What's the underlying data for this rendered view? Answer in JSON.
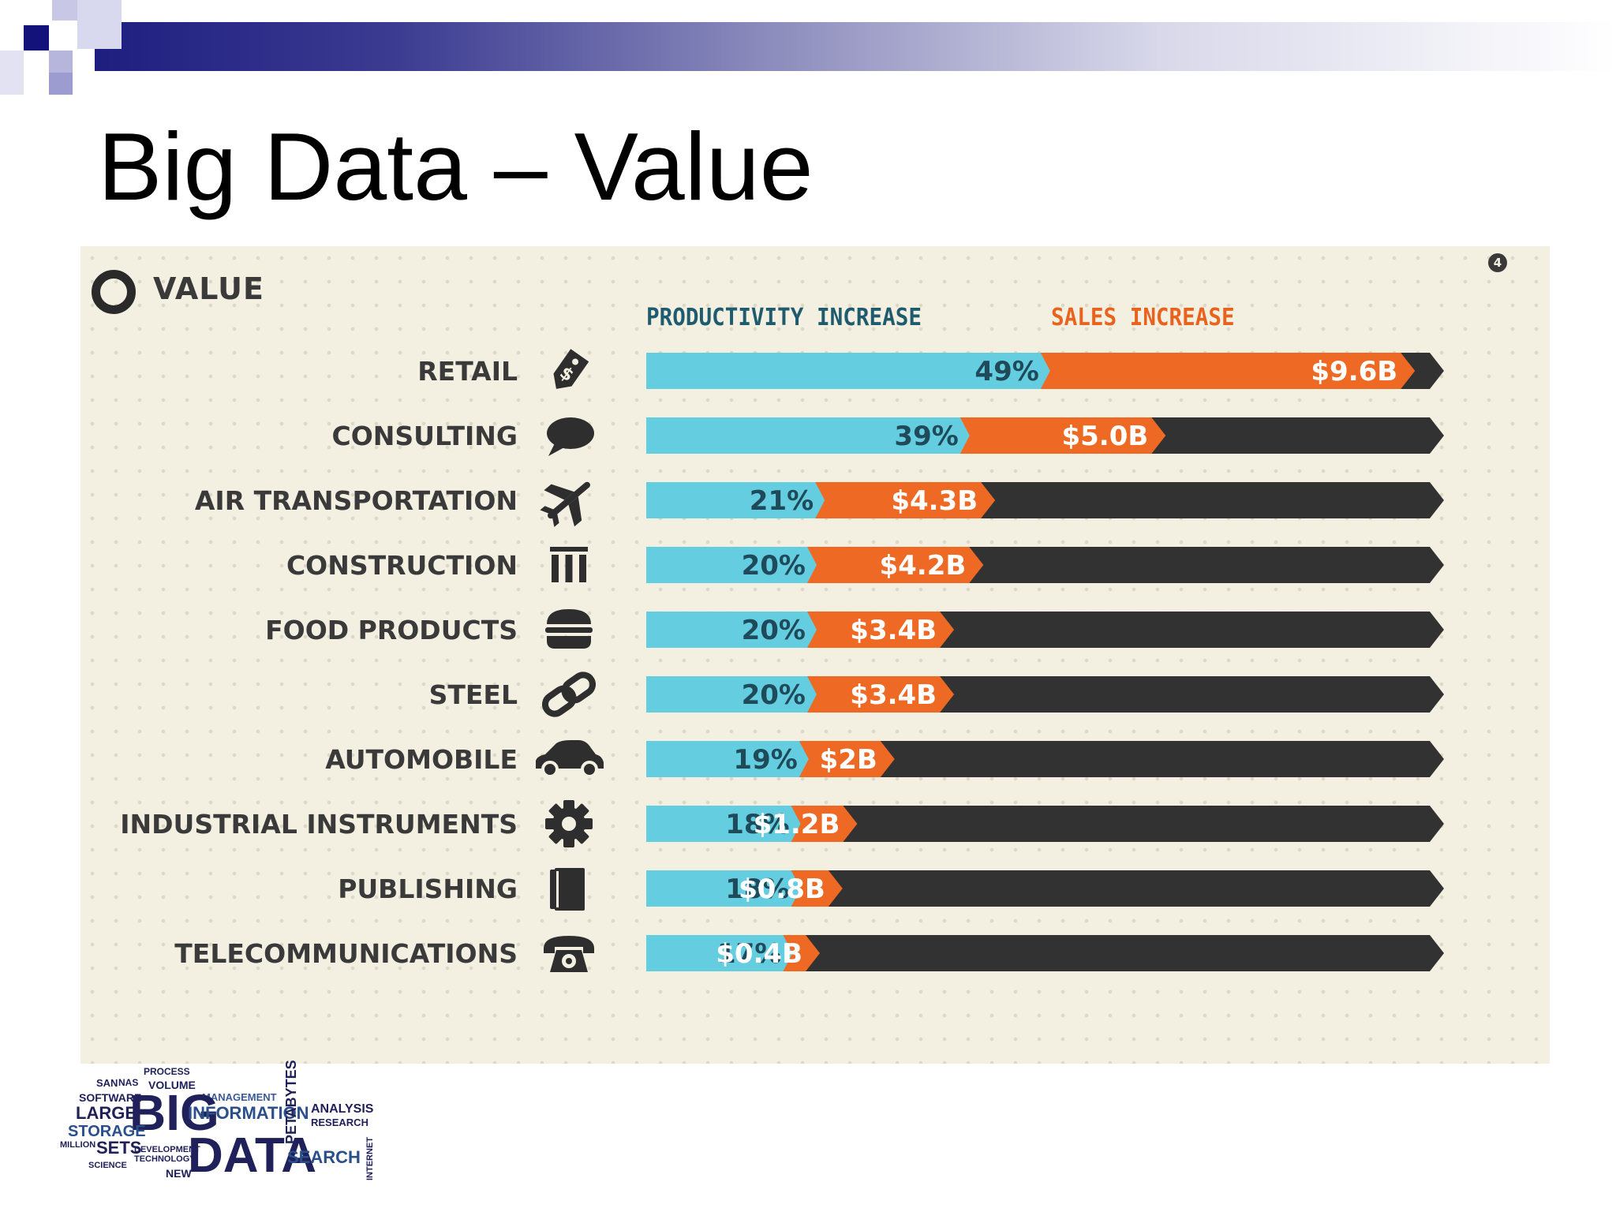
{
  "slide": {
    "title": "Big Data – Value"
  },
  "panel": {
    "heading": "VALUE",
    "page_badge": "4"
  },
  "colors": {
    "productivity": "#65cde0",
    "sales": "#ee6a24",
    "track": "#333232",
    "title_band": "#1e1e80"
  },
  "chart_data": {
    "type": "bar",
    "stacked": true,
    "legend": [
      "PRODUCTIVITY INCREASE",
      "SALES INCREASE"
    ],
    "categories": [
      "RETAIL",
      "CONSULTING",
      "AIR TRANSPORTATION",
      "CONSTRUCTION",
      "FOOD PRODUCTS",
      "STEEL",
      "AUTOMOBILE",
      "INDUSTRIAL INSTRUMENTS",
      "PUBLISHING",
      "TELECOMMUNICATIONS"
    ],
    "icons": [
      "price-tag-icon",
      "speech-bubble-icon",
      "airplane-icon",
      "columns-icon",
      "burger-icon",
      "chain-link-icon",
      "car-icon",
      "gear-icon",
      "book-icon",
      "telephone-icon"
    ],
    "series": [
      {
        "name": "PRODUCTIVITY INCREASE",
        "values": [
          49,
          39,
          21,
          20,
          20,
          20,
          19,
          18,
          18,
          17
        ],
        "labels": [
          "49%",
          "39%",
          "21%",
          "20%",
          "20%",
          "20%",
          "19%",
          "18%",
          "18%",
          "17%"
        ]
      },
      {
        "name": "SALES INCREASE",
        "values": [
          9.6,
          5.0,
          4.3,
          4.2,
          3.4,
          3.4,
          2,
          1.2,
          0.8,
          0.4
        ],
        "labels": [
          "$9.6B",
          "$5.0B",
          "$4.3B",
          "$4.2B",
          "$3.4B",
          "$3.4B",
          "$2B",
          "$1.2B",
          "$0.8B",
          "$0.4B"
        ]
      }
    ]
  },
  "logo": {
    "words": {
      "big": "BIG",
      "data": "DATA",
      "information": "INFORMATION",
      "analysis": "ANALYSIS",
      "storage": "STORAGE",
      "large": "LARGE",
      "sets": "SETS",
      "search": "SEARCH",
      "management": "MANAGEMENT",
      "volume": "VOLUME",
      "software": "SOFTWARE",
      "petabytes": "PETABYTES",
      "research": "RESEARCH",
      "million": "MILLION",
      "development": "DEVELOPMENT",
      "technology": "TECHNOLOGY",
      "process": "PROCESS",
      "science": "SCIENCE",
      "internet": "INTERNET",
      "new": "NEW",
      "san": "SAN",
      "nas": "NAS"
    }
  }
}
